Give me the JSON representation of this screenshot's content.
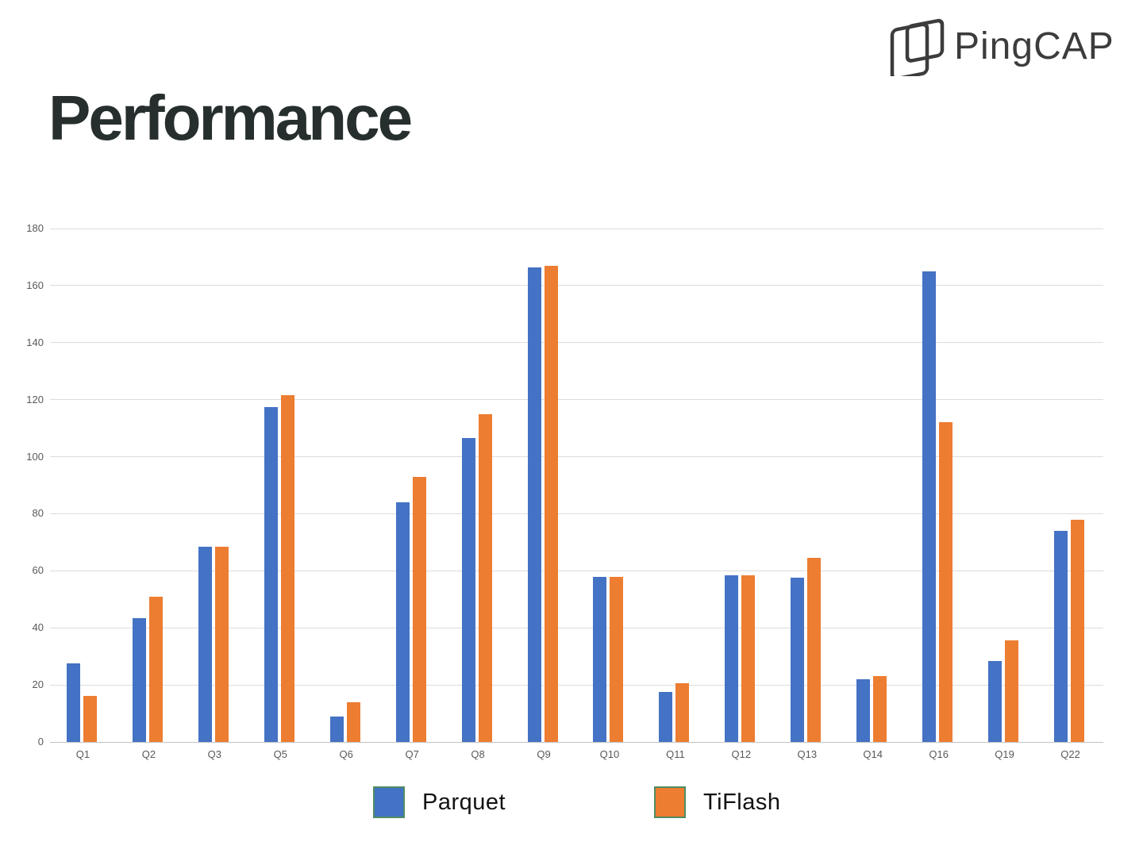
{
  "logo": {
    "brand": "PingCAP"
  },
  "header": {
    "title": "Performance"
  },
  "colors": {
    "parquet": "#4472C4",
    "tiflash": "#ED7D31",
    "legend_border": "#4e8c63",
    "title_text": "#272e2e",
    "axis_text": "#595959",
    "gridline": "#dcdcdc",
    "baseline": "#c2c2c2",
    "logo_ink": "#3c3c3c"
  },
  "legend": {
    "items": [
      {
        "label": "Parquet",
        "color_key": "parquet"
      },
      {
        "label": "TiFlash",
        "color_key": "tiflash"
      }
    ]
  },
  "chart_data": {
    "type": "bar",
    "title": "Performance",
    "xlabel": "",
    "ylabel": "",
    "categories": [
      "Q1",
      "Q2",
      "Q3",
      "Q5",
      "Q6",
      "Q7",
      "Q8",
      "Q9",
      "Q10",
      "Q11",
      "Q12",
      "Q13",
      "Q14",
      "Q16",
      "Q19",
      "Q22"
    ],
    "series": [
      {
        "name": "Parquet",
        "color": "#4472C4",
        "values": [
          27.5,
          43.5,
          68.5,
          117.5,
          9,
          84,
          106.5,
          166.5,
          58,
          17.5,
          58.5,
          57.5,
          22,
          165,
          28.5,
          74
        ]
      },
      {
        "name": "TiFlash",
        "color": "#ED7D31",
        "values": [
          16,
          51,
          68.5,
          121.5,
          14,
          93,
          115,
          167,
          58,
          20.5,
          58.5,
          64.5,
          23,
          112,
          35.5,
          78
        ]
      }
    ],
    "ylim": [
      0,
      180
    ],
    "ytick_step": 20,
    "yticks": [
      "0",
      "20",
      "40",
      "60",
      "80",
      "100",
      "120",
      "140",
      "160",
      "180"
    ],
    "grid": true,
    "legend_position": "bottom"
  }
}
